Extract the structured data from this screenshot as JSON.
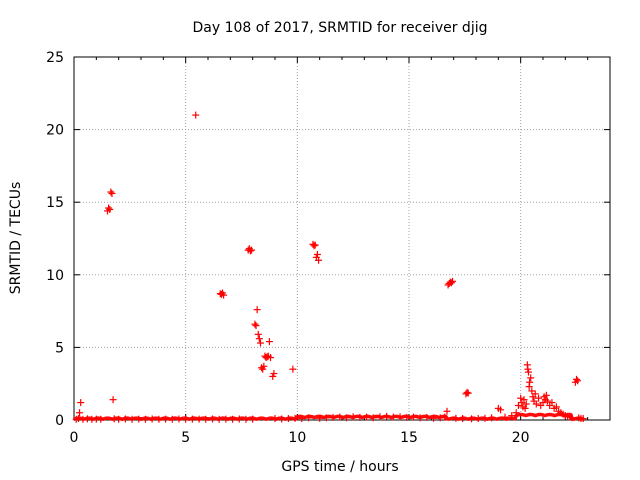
{
  "chart_data": {
    "type": "scatter",
    "title": "Day 108 of 2017, SRMTID for receiver djig",
    "xlabel": "GPS time / hours",
    "ylabel": "SRMTID / TECUs",
    "xlim": [
      0,
      24
    ],
    "ylim": [
      0,
      25
    ],
    "xticks": [
      0,
      5,
      10,
      15,
      20
    ],
    "yticks": [
      0,
      5,
      10,
      15,
      20,
      25
    ],
    "grid": true,
    "marker": "plus",
    "marker_color": "#ff0000",
    "series": [
      {
        "points": [
          [
            0.1,
            0.05
          ],
          [
            0.2,
            0.1
          ],
          [
            0.25,
            0.5
          ],
          [
            0.3,
            1.2
          ],
          [
            0.4,
            0.05
          ],
          [
            0.6,
            0.08
          ],
          [
            0.8,
            0.05
          ],
          [
            1.0,
            0.06
          ],
          [
            1.2,
            0.05
          ],
          [
            1.5,
            14.4
          ],
          [
            1.55,
            14.6
          ],
          [
            1.6,
            14.5
          ],
          [
            1.65,
            15.7
          ],
          [
            1.7,
            15.6
          ],
          [
            1.75,
            1.4
          ],
          [
            1.8,
            0.08
          ],
          [
            2.0,
            0.05
          ],
          [
            2.3,
            0.07
          ],
          [
            2.6,
            0.05
          ],
          [
            2.9,
            0.06
          ],
          [
            3.2,
            0.05
          ],
          [
            3.5,
            0.07
          ],
          [
            3.8,
            0.05
          ],
          [
            4.1,
            0.06
          ],
          [
            4.4,
            0.05
          ],
          [
            4.7,
            0.07
          ],
          [
            5.0,
            0.05
          ],
          [
            5.3,
            0.06
          ],
          [
            5.45,
            21.0
          ],
          [
            5.6,
            0.06
          ],
          [
            5.9,
            0.05
          ],
          [
            6.2,
            0.07
          ],
          [
            6.5,
            0.05
          ],
          [
            6.55,
            8.7
          ],
          [
            6.6,
            8.65
          ],
          [
            6.65,
            8.75
          ],
          [
            6.7,
            8.6
          ],
          [
            6.8,
            0.06
          ],
          [
            7.1,
            0.05
          ],
          [
            7.4,
            0.07
          ],
          [
            7.7,
            0.05
          ],
          [
            7.8,
            11.7
          ],
          [
            7.85,
            11.8
          ],
          [
            7.9,
            11.65
          ],
          [
            7.95,
            11.7
          ],
          [
            8.0,
            0.06
          ],
          [
            8.1,
            6.6
          ],
          [
            8.15,
            6.5
          ],
          [
            8.2,
            7.6
          ],
          [
            8.25,
            5.9
          ],
          [
            8.3,
            5.6
          ],
          [
            8.35,
            5.3
          ],
          [
            8.4,
            3.6
          ],
          [
            8.45,
            3.5
          ],
          [
            8.5,
            3.7
          ],
          [
            8.55,
            4.4
          ],
          [
            8.6,
            4.3
          ],
          [
            8.65,
            4.35
          ],
          [
            8.7,
            4.4
          ],
          [
            8.75,
            5.4
          ],
          [
            8.8,
            4.3
          ],
          [
            8.9,
            3.0
          ],
          [
            8.95,
            3.2
          ],
          [
            9.0,
            0.1
          ],
          [
            9.3,
            0.07
          ],
          [
            9.6,
            0.1
          ],
          [
            9.8,
            3.5
          ],
          [
            9.9,
            0.12
          ],
          [
            10.2,
            0.1
          ],
          [
            10.5,
            0.15
          ],
          [
            10.7,
            12.1
          ],
          [
            10.75,
            12.0
          ],
          [
            10.8,
            12.05
          ],
          [
            10.85,
            11.2
          ],
          [
            10.9,
            11.4
          ],
          [
            10.95,
            11.0
          ],
          [
            11.0,
            0.12
          ],
          [
            11.3,
            0.15
          ],
          [
            11.6,
            0.18
          ],
          [
            11.9,
            0.2
          ],
          [
            12.2,
            0.15
          ],
          [
            12.5,
            0.22
          ],
          [
            12.8,
            0.18
          ],
          [
            13.1,
            0.2
          ],
          [
            13.4,
            0.15
          ],
          [
            13.7,
            0.22
          ],
          [
            14.0,
            0.25
          ],
          [
            14.3,
            0.2
          ],
          [
            14.6,
            0.22
          ],
          [
            14.9,
            0.18
          ],
          [
            15.2,
            0.2
          ],
          [
            15.5,
            0.15
          ],
          [
            15.8,
            0.18
          ],
          [
            16.1,
            0.12
          ],
          [
            16.4,
            0.15
          ],
          [
            16.6,
            0.2
          ],
          [
            16.7,
            0.6
          ],
          [
            16.75,
            9.3
          ],
          [
            16.8,
            9.4
          ],
          [
            16.85,
            9.5
          ],
          [
            16.9,
            9.45
          ],
          [
            16.95,
            9.55
          ],
          [
            17.1,
            0.12
          ],
          [
            17.4,
            0.1
          ],
          [
            17.55,
            1.8
          ],
          [
            17.6,
            1.9
          ],
          [
            17.65,
            1.85
          ],
          [
            17.8,
            0.08
          ],
          [
            18.1,
            0.1
          ],
          [
            18.4,
            0.12
          ],
          [
            18.7,
            0.15
          ],
          [
            19.0,
            0.8
          ],
          [
            19.1,
            0.7
          ],
          [
            19.3,
            0.2
          ],
          [
            19.6,
            0.3
          ],
          [
            19.8,
            0.5
          ],
          [
            19.9,
            1.0
          ],
          [
            20.0,
            1.5
          ],
          [
            20.05,
            1.2
          ],
          [
            20.1,
            0.9
          ],
          [
            20.15,
            1.4
          ],
          [
            20.2,
            0.8
          ],
          [
            20.25,
            1.1
          ],
          [
            20.3,
            3.8
          ],
          [
            20.32,
            3.5
          ],
          [
            20.35,
            3.3
          ],
          [
            20.38,
            2.3
          ],
          [
            20.4,
            2.6
          ],
          [
            20.45,
            2.9
          ],
          [
            20.5,
            2.0
          ],
          [
            20.55,
            1.6
          ],
          [
            20.6,
            1.3
          ],
          [
            20.65,
            1.8
          ],
          [
            20.7,
            1.1
          ],
          [
            20.8,
            1.5
          ],
          [
            20.9,
            1.0
          ],
          [
            21.0,
            1.2
          ],
          [
            21.05,
            1.6
          ],
          [
            21.1,
            1.4
          ],
          [
            21.15,
            1.7
          ],
          [
            21.2,
            1.3
          ],
          [
            21.3,
            1.0
          ],
          [
            21.4,
            1.2
          ],
          [
            21.5,
            0.8
          ],
          [
            21.6,
            0.9
          ],
          [
            21.7,
            0.6
          ],
          [
            21.8,
            0.5
          ],
          [
            21.9,
            0.4
          ],
          [
            22.0,
            0.3
          ],
          [
            22.1,
            0.25
          ],
          [
            22.2,
            0.2
          ],
          [
            22.3,
            0.15
          ],
          [
            22.45,
            2.6
          ],
          [
            22.5,
            2.8
          ],
          [
            22.55,
            2.7
          ],
          [
            22.6,
            0.15
          ],
          [
            22.7,
            0.1
          ],
          [
            22.8,
            0.1
          ]
        ]
      }
    ]
  }
}
